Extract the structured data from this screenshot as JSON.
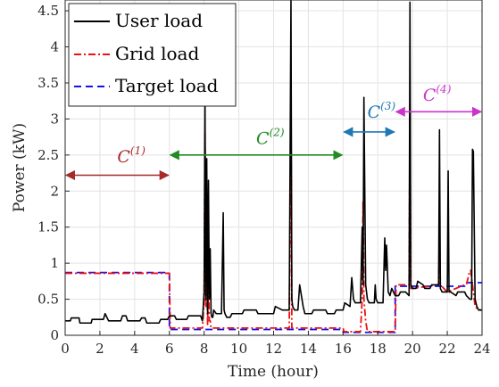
{
  "chart_data": {
    "type": "line",
    "title": "",
    "xlabel": "Time (hour)",
    "ylabel": "Power (kW)",
    "xlim": [
      0,
      24
    ],
    "ylim": [
      0,
      4.65
    ],
    "x_ticks": [
      0,
      2,
      4,
      6,
      8,
      10,
      12,
      14,
      16,
      18,
      20,
      22,
      24
    ],
    "y_ticks": [
      0,
      0.5,
      1,
      1.5,
      2,
      2.5,
      3,
      3.5,
      4,
      4.5
    ],
    "grid": true,
    "legend_position": "top-left",
    "series": [
      {
        "name": "User load",
        "color": "#000000",
        "dash": "solid",
        "x": [
          0,
          0.3,
          0.35,
          0.8,
          0.85,
          1.5,
          1.55,
          2.2,
          2.3,
          2.4,
          2.5,
          3.2,
          3.3,
          3.5,
          3.6,
          4.3,
          4.4,
          4.6,
          4.7,
          5.4,
          5.5,
          5.9,
          6.0,
          6.3,
          6.4,
          7.0,
          7.1,
          7.8,
          7.9,
          8.0,
          8.05,
          8.1,
          8.15,
          8.2,
          8.25,
          8.3,
          8.35,
          8.4,
          8.45,
          8.5,
          8.55,
          8.7,
          9.0,
          9.1,
          9.15,
          9.2,
          9.3,
          9.5,
          9.6,
          10.2,
          10.3,
          11.0,
          11.1,
          12.0,
          12.1,
          12.5,
          12.9,
          13.0,
          13.05,
          13.1,
          13.2,
          13.4,
          13.5,
          13.7,
          13.8,
          14.2,
          14.3,
          15.0,
          15.1,
          15.5,
          15.6,
          16.0,
          16.1,
          16.4,
          16.5,
          16.6,
          16.7,
          17.0,
          17.1,
          17.15,
          17.2,
          17.3,
          17.4,
          17.5,
          17.8,
          17.85,
          17.9,
          18.0,
          18.3,
          18.4,
          18.45,
          18.5,
          18.6,
          18.7,
          18.8,
          18.9,
          19.0,
          19.2,
          19.3,
          19.6,
          19.8,
          19.85,
          19.9,
          20.0,
          20.2,
          20.3,
          20.6,
          20.7,
          21.0,
          21.1,
          21.5,
          21.55,
          21.6,
          21.7,
          22.0,
          22.05,
          22.1,
          22.2,
          22.5,
          22.6,
          23.0,
          23.1,
          23.3,
          23.4,
          23.45,
          23.5,
          23.6,
          23.7,
          23.8,
          24.0
        ],
        "values": [
          0.2,
          0.2,
          0.24,
          0.24,
          0.17,
          0.17,
          0.22,
          0.22,
          0.3,
          0.25,
          0.2,
          0.2,
          0.27,
          0.27,
          0.2,
          0.2,
          0.24,
          0.24,
          0.17,
          0.17,
          0.22,
          0.22,
          0.27,
          0.27,
          0.22,
          0.22,
          0.27,
          0.27,
          0.2,
          0.6,
          3.3,
          0.5,
          2.45,
          0.3,
          2.15,
          0.5,
          1.2,
          0.3,
          0.25,
          0.25,
          0.35,
          0.3,
          0.3,
          1.7,
          0.35,
          0.3,
          0.25,
          0.25,
          0.3,
          0.3,
          0.35,
          0.35,
          0.3,
          0.3,
          0.4,
          0.35,
          0.35,
          4.65,
          0.5,
          0.4,
          0.35,
          0.35,
          0.7,
          0.4,
          0.3,
          0.3,
          0.35,
          0.35,
          0.3,
          0.3,
          0.35,
          0.35,
          0.45,
          0.4,
          0.8,
          0.5,
          0.45,
          0.45,
          1.5,
          0.7,
          3.3,
          0.7,
          0.5,
          0.45,
          0.45,
          0.7,
          0.5,
          0.45,
          0.45,
          1.35,
          0.9,
          1.25,
          0.6,
          0.55,
          0.65,
          0.6,
          0.55,
          0.55,
          0.6,
          0.6,
          0.55,
          4.62,
          0.7,
          0.65,
          0.65,
          0.75,
          0.7,
          0.65,
          0.65,
          0.7,
          0.7,
          2.85,
          0.65,
          0.6,
          0.6,
          2.28,
          0.6,
          0.6,
          0.55,
          0.6,
          0.6,
          0.55,
          0.5,
          0.5,
          2.58,
          2.55,
          0.5,
          0.4,
          0.35,
          0.35
        ]
      },
      {
        "name": "Grid load",
        "color": "#ee1111",
        "dash": "dashdot",
        "x": [
          0,
          6.0,
          6.05,
          7.9,
          8.0,
          8.05,
          8.1,
          8.15,
          8.2,
          8.25,
          8.3,
          8.35,
          8.4,
          8.5,
          12.9,
          13.0,
          13.05,
          13.1,
          16.0,
          16.05,
          17.0,
          17.1,
          17.15,
          17.2,
          17.3,
          17.4,
          19.0,
          19.05,
          19.8,
          19.85,
          19.9,
          20.0,
          21.5,
          21.55,
          21.6,
          22.0,
          23.0,
          23.1,
          23.3,
          23.35,
          23.5,
          23.6,
          23.8,
          24.0
        ],
        "values": [
          0.86,
          0.86,
          0.1,
          0.1,
          0.5,
          2.8,
          0.4,
          1.0,
          0.15,
          0.75,
          0.2,
          0.2,
          0.1,
          0.1,
          0.1,
          3.27,
          0.1,
          0.1,
          0.1,
          0.05,
          0.05,
          0.5,
          1.85,
          0.5,
          0.2,
          0.05,
          0.05,
          0.7,
          0.7,
          3.2,
          0.65,
          0.65,
          0.7,
          1.45,
          0.7,
          0.6,
          0.7,
          0.7,
          0.9,
          0.9,
          0.6,
          0.4,
          0.35,
          0.35
        ]
      },
      {
        "name": "Target load",
        "color": "#1111ee",
        "dash": "dashed",
        "x": [
          0,
          6.0,
          6.0,
          16.0,
          16.0,
          19.0,
          19.0,
          23.0,
          23.0,
          24.0
        ],
        "values": [
          0.87,
          0.87,
          0.08,
          0.08,
          0.04,
          0.04,
          0.68,
          0.68,
          0.73,
          0.73
        ]
      }
    ],
    "annotations": [
      {
        "label": "C",
        "sup": "(1)",
        "x_start": 0,
        "x_end": 6,
        "y": 2.22,
        "label_x": 3.0,
        "label_y": 2.4,
        "color": "#a52a2a"
      },
      {
        "label": "C",
        "sup": "(2)",
        "x_start": 6,
        "x_end": 16,
        "y": 2.5,
        "label_x": 11.0,
        "label_y": 2.65,
        "color": "#228b22"
      },
      {
        "label": "C",
        "sup": "(3)",
        "x_start": 16,
        "x_end": 19,
        "y": 2.82,
        "label_x": 17.4,
        "label_y": 3.02,
        "color": "#1f77b4"
      },
      {
        "label": "C",
        "sup": "(4)",
        "x_start": 19,
        "x_end": 24,
        "y": 3.1,
        "label_x": 20.6,
        "label_y": 3.25,
        "color": "#cc33cc"
      }
    ]
  }
}
